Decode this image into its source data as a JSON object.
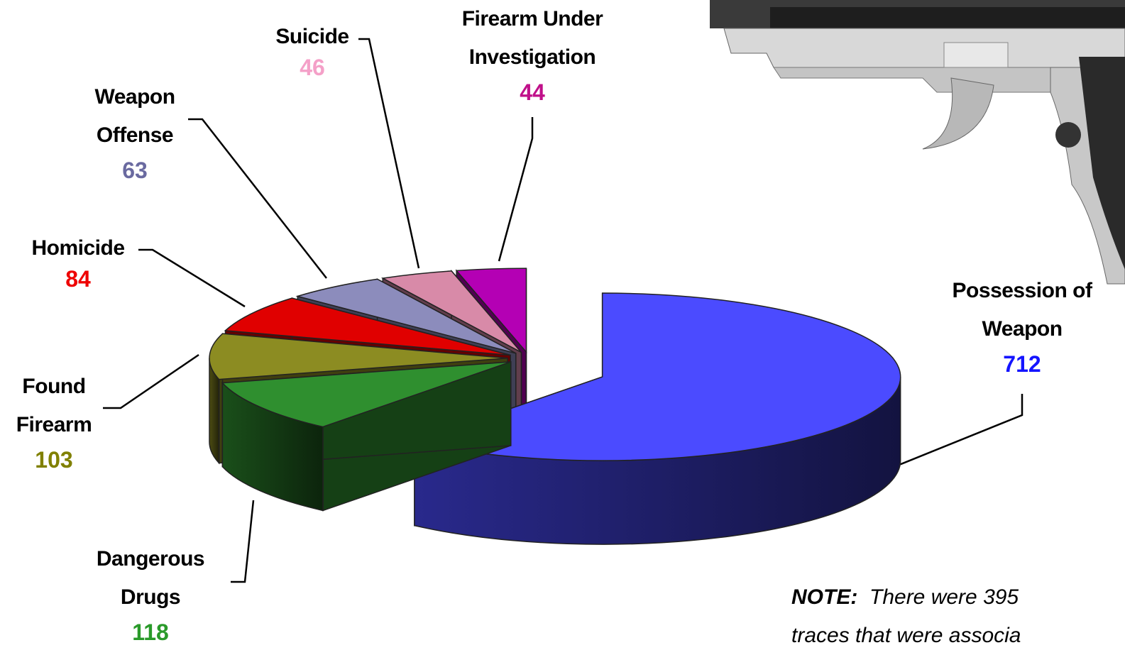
{
  "chart_data": {
    "type": "pie3d",
    "categories": [
      "Possession of Weapon",
      "Dangerous Drugs",
      "Found Firearm",
      "Homicide",
      "Weapon Offense",
      "Suicide",
      "Firearm Under Investigation"
    ],
    "values": [
      712,
      118,
      103,
      84,
      63,
      46,
      44
    ],
    "colors": [
      "#4b4bff",
      "#2f8f2f",
      "#8c8c22",
      "#e00000",
      "#8c8cbc",
      "#d88aa8",
      "#b400b4"
    ],
    "label_colors": [
      "#1414ff",
      "#2a9a2a",
      "#808000",
      "#ee0000",
      "#6a6aa0",
      "#f4a0c8",
      "#c0108a"
    ],
    "note_label": "NOTE:",
    "note_lines": [
      "There were 395",
      "traces that were associa"
    ]
  }
}
